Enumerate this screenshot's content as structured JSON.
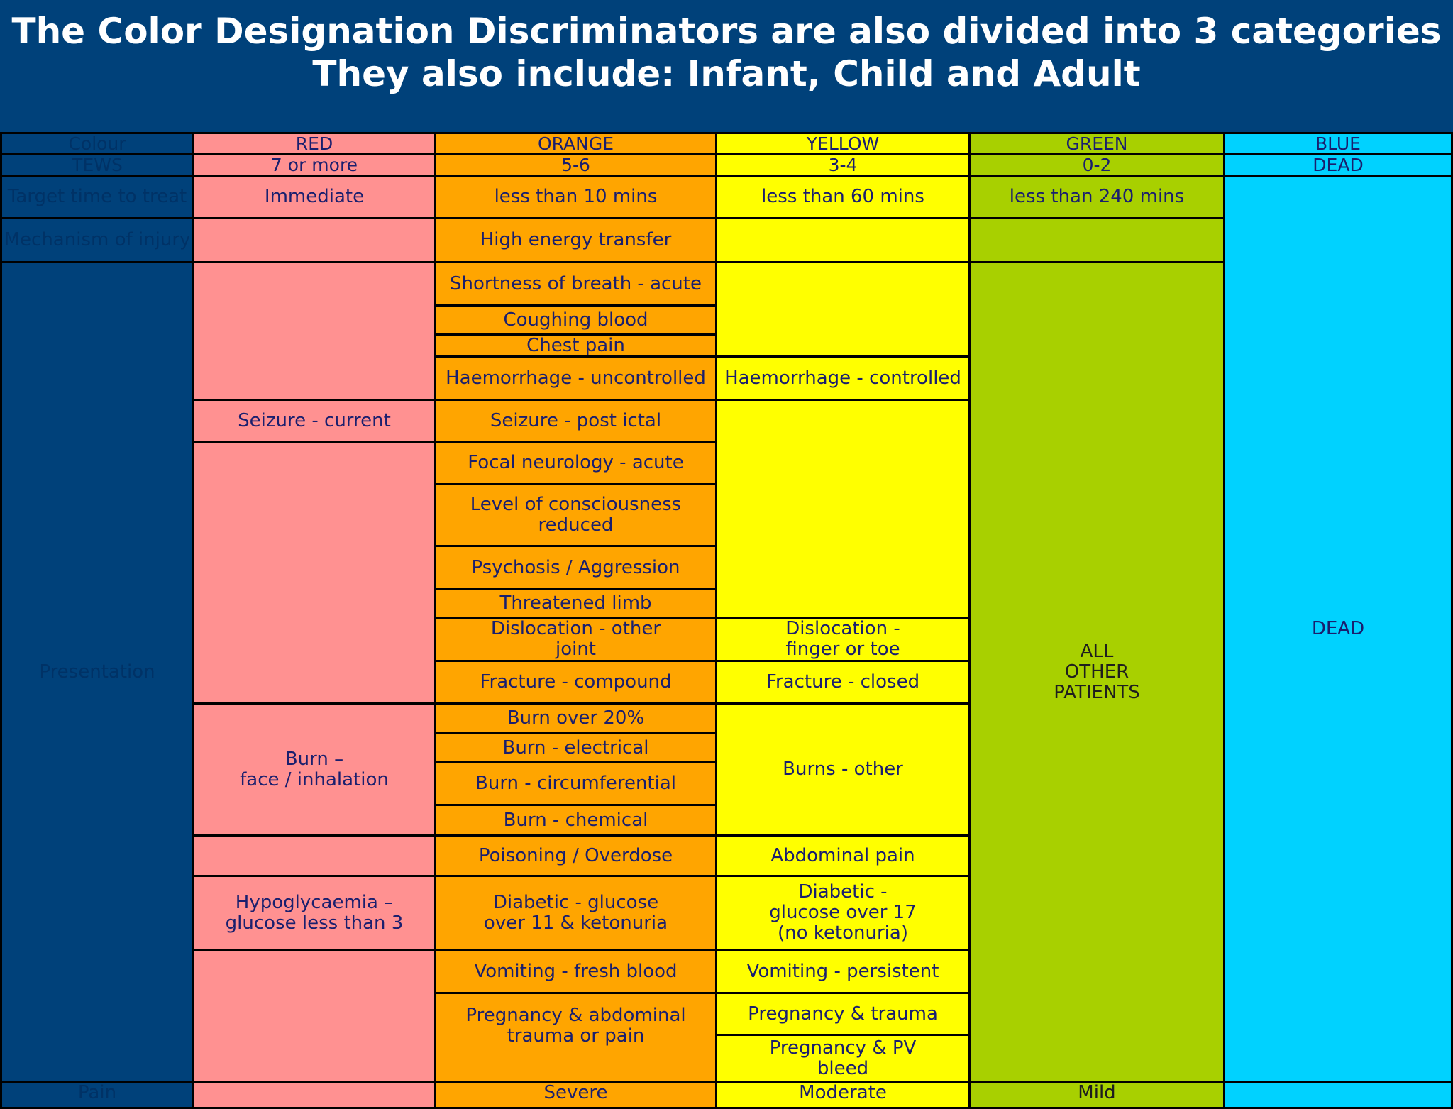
{
  "title": {
    "line1": "The Color Designation Discriminators  are also divided into  3 categories",
    "line2": "They also include: Infant, Child and Adult"
  },
  "colors": {
    "background": "#00417a",
    "red": "#ff9191",
    "orange": "#ffa500",
    "yellow": "#ffff00",
    "green": "#a8d000",
    "blue": "#00d2ff"
  },
  "rows": {
    "colour": {
      "label": "Colour",
      "red": "RED",
      "orange": "ORANGE",
      "yellow": "YELLOW",
      "green": "GREEN",
      "blue": "BLUE"
    },
    "tews": {
      "label": "TEWS",
      "red": "7 or more",
      "orange": "5-6",
      "yellow": "3-4",
      "green": "0-2",
      "blue": "DEAD"
    },
    "target": {
      "label": "Target time to treat",
      "red": "Immediate",
      "orange": "less than 10 mins",
      "yellow": "less than 60 mins",
      "green": "less than 240 mins"
    },
    "mechanism": {
      "label": "Mechanism of injury",
      "orange": "High energy transfer"
    }
  },
  "presentation": {
    "label": "Presentation",
    "red": [
      "Seizure - current",
      "Burn –\nface / inhalation",
      "Hypoglycaemia –\nglucose less than 3"
    ],
    "orange": [
      "Shortness of breath - acute",
      "Coughing blood",
      "Chest pain",
      "Haemorrhage - uncontrolled",
      "Seizure - post ictal",
      "Focal neurology - acute",
      "Level of consciousness\nreduced",
      "Psychosis / Aggression",
      "Threatened limb",
      "Dislocation -          other\njoint",
      "Fracture - compound",
      "Burn over 20%",
      "Burn - electrical",
      "Burn - circumferential",
      "Burn - chemical",
      "Poisoning / Overdose",
      "Diabetic -                glucose\nover 11      & ketonuria",
      "Vomiting -            fresh blood",
      "Pregnancy & abdominal\ntrauma or pain"
    ],
    "yellow": [
      "Haemorrhage - controlled",
      "Dislocation -\nfinger or toe",
      "Fracture -           closed",
      "Burns - other",
      "Abdominal pain",
      "Diabetic -\nglucose over 17\n(no ketonuria)",
      "Vomiting -  persistent",
      "Pregnancy & trauma",
      "Pregnancy &            PV\nbleed"
    ],
    "green": "ALL\nOTHER\n PATIENTS",
    "blue": "DEAD"
  },
  "pain": {
    "label": "Pain",
    "orange": "Severe",
    "yellow": "Moderate",
    "green": "Mild"
  }
}
